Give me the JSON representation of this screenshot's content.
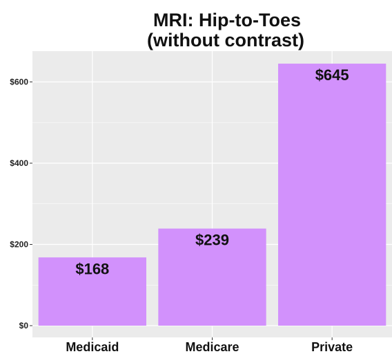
{
  "chart_data": {
    "type": "bar",
    "title_lines": [
      "MRI: Hip-to-Toes",
      "(without contrast)"
    ],
    "categories": [
      "Medicaid",
      "Medicare",
      "Private"
    ],
    "values": [
      168,
      239,
      645
    ],
    "data_labels": [
      "$168",
      "$239",
      "$645"
    ],
    "yticks": [
      0,
      200,
      400,
      600
    ],
    "ytick_labels": [
      "$0",
      "$200",
      "$400",
      "$600"
    ],
    "ylim": [
      0,
      670
    ],
    "grid": true,
    "colors": {
      "bar": "#D291FC",
      "panel": "#EBEBEB",
      "gridline": "#FFFFFF"
    }
  }
}
